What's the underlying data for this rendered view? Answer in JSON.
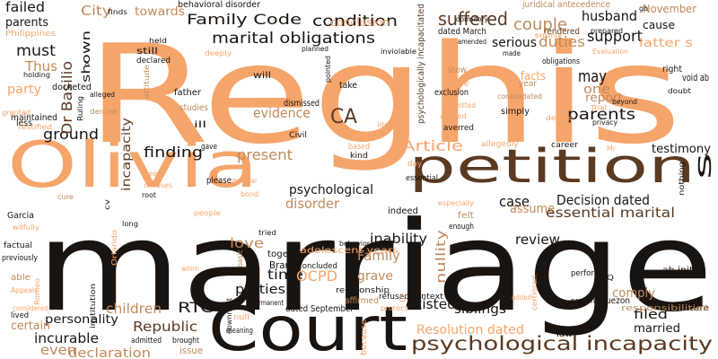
{
  "palette": {
    "background": "#ffffff",
    "dark": "#1a1410",
    "brown": "#5b3a22",
    "tan": "#c08a5a",
    "peach": "#f5a56a",
    "light": "#f7c9a0"
  },
  "words": [
    {
      "text": "Reghis",
      "color": "#f5a56a"
    },
    {
      "text": "marriage",
      "color": "#1a1410"
    },
    {
      "text": "petition",
      "color": "#5b3a22"
    },
    {
      "text": "Olivia",
      "color": "#f5a56a"
    },
    {
      "text": "Court",
      "color": "#1a1410"
    },
    {
      "text": "psychological incapacity",
      "color": "#5b3a22"
    },
    {
      "text": "marital obligations",
      "color": "#1a1410"
    },
    {
      "text": "Family Code",
      "color": "#1a1410"
    },
    {
      "text": "condition",
      "color": "#1a1410"
    },
    {
      "text": "suffered",
      "color": "#5b3a22"
    },
    {
      "text": "couple",
      "color": "#c08a5a"
    },
    {
      "text": "husband",
      "color": "#1a1410"
    },
    {
      "text": "support",
      "color": "#1a1410"
    },
    {
      "text": "duties",
      "color": "#c08a5a"
    },
    {
      "text": "serious",
      "color": "#1a1410"
    },
    {
      "text": "parents",
      "color": "#1a1410"
    },
    {
      "text": "may",
      "color": "#1a1410"
    },
    {
      "text": "one",
      "color": "#c08a5a"
    },
    {
      "text": "report",
      "color": "#c08a5a"
    },
    {
      "text": "must",
      "color": "#1a1410"
    },
    {
      "text": "failed",
      "color": "#1a1410"
    },
    {
      "text": "City",
      "color": "#c08a5a"
    },
    {
      "text": "towards",
      "color": "#c08a5a"
    },
    {
      "text": "parents",
      "color": "#1a1410"
    },
    {
      "text": "shown",
      "color": "#1a1410"
    },
    {
      "text": "Thus",
      "color": "#c08a5a"
    },
    {
      "text": "party",
      "color": "#f5a56a"
    },
    {
      "text": "Dr Basilio",
      "color": "#5b3a22"
    },
    {
      "text": "CA",
      "color": "#5b3a22"
    },
    {
      "text": "evidence",
      "color": "#c08a5a"
    },
    {
      "text": "ground",
      "color": "#1a1410"
    },
    {
      "text": "incapacity",
      "color": "#5b3a22"
    },
    {
      "text": "finding",
      "color": "#1a1410"
    },
    {
      "text": "present",
      "color": "#c08a5a"
    },
    {
      "text": "Article",
      "color": "#f5a56a"
    },
    {
      "text": "testimony",
      "color": "#1a1410"
    },
    {
      "text": "psychological",
      "color": "#1a1410"
    },
    {
      "text": "case",
      "color": "#1a1410"
    },
    {
      "text": "Decision dated",
      "color": "#1a1410"
    },
    {
      "text": "disorder",
      "color": "#c08a5a"
    },
    {
      "text": "assume",
      "color": "#c08a5a"
    },
    {
      "text": "essential marital",
      "color": "#5b3a22"
    },
    {
      "text": "love",
      "color": "#c08a5a"
    },
    {
      "text": "Family",
      "color": "#c08a5a"
    },
    {
      "text": "inability",
      "color": "#1a1410"
    },
    {
      "text": "review",
      "color": "#1a1410"
    },
    {
      "text": "nullity",
      "color": "#c08a5a"
    },
    {
      "text": "grave",
      "color": "#c08a5a"
    },
    {
      "text": "time",
      "color": "#1a1410"
    },
    {
      "text": "parties",
      "color": "#1a1410"
    },
    {
      "text": "OCPD",
      "color": "#f5a56a"
    },
    {
      "text": "RTC",
      "color": "#1a1410"
    },
    {
      "text": "children",
      "color": "#c08a5a"
    },
    {
      "text": "Republic",
      "color": "#5b3a22"
    },
    {
      "text": "incurable",
      "color": "#1a1410"
    },
    {
      "text": "personality",
      "color": "#1a1410"
    },
    {
      "text": "certain",
      "color": "#c08a5a"
    },
    {
      "text": "even",
      "color": "#c08a5a"
    },
    {
      "text": "declaration",
      "color": "#c08a5a"
    },
    {
      "text": "existed",
      "color": "#1a1410"
    },
    {
      "text": "siblings",
      "color": "#1a1410"
    },
    {
      "text": "Resolution dated",
      "color": "#f5a56a"
    },
    {
      "text": "filed",
      "color": "#1a1410"
    },
    {
      "text": "married",
      "color": "#1a1410"
    },
    {
      "text": "comply",
      "color": "#c08a5a"
    },
    {
      "text": "ab initio",
      "color": "#1a1410"
    },
    {
      "text": "conclusion",
      "color": "#f5a56a"
    },
    {
      "text": "November",
      "color": "#c08a5a"
    },
    {
      "text": "latter s",
      "color": "#f5a56a"
    },
    {
      "text": "cause",
      "color": "#1a1410"
    },
    {
      "text": "s",
      "color": "#1a1410"
    },
    {
      "text": "void ab",
      "color": "#1a1410"
    },
    {
      "text": "right",
      "color": "#1a1410"
    },
    {
      "text": "behavioral disorder",
      "color": "#1a1410"
    },
    {
      "text": "psychologically incapacitated",
      "color": "#5b3a22"
    },
    {
      "text": "juridical antecedence",
      "color": "#c08a5a"
    },
    {
      "text": "dated March",
      "color": "#1a1410"
    },
    {
      "text": "rendered",
      "color": "#5b3a22"
    },
    {
      "text": "facts",
      "color": "#f5a56a"
    },
    {
      "text": "show",
      "color": "#c08a5a"
    },
    {
      "text": "unable",
      "color": "#f5a56a"
    },
    {
      "text": "exclusion",
      "color": "#1a1410"
    },
    {
      "text": "simply",
      "color": "#1a1410"
    },
    {
      "text": "year",
      "color": "#c08a5a"
    },
    {
      "text": "father",
      "color": "#1a1410"
    },
    {
      "text": "studies",
      "color": "#c08a5a"
    },
    {
      "text": "ill",
      "color": "#1a1410"
    },
    {
      "text": "will",
      "color": "#1a1410"
    },
    {
      "text": "take",
      "color": "#1a1410"
    },
    {
      "text": "dismissed",
      "color": "#1a1410"
    },
    {
      "text": "Civil",
      "color": "#1a1410"
    },
    {
      "text": "docketed",
      "color": "#1a1410"
    },
    {
      "text": "maintained",
      "color": "#1a1410"
    },
    {
      "text": "less",
      "color": "#1a1410"
    },
    {
      "text": "Garcia",
      "color": "#1a1410"
    },
    {
      "text": "previously",
      "color": "#1a1410"
    },
    {
      "text": "factual",
      "color": "#1a1410"
    },
    {
      "text": "able",
      "color": "#c08a5a"
    },
    {
      "text": "lived",
      "color": "#1a1410"
    },
    {
      "text": "together",
      "color": "#1a1410"
    },
    {
      "text": "Branch",
      "color": "#1a1410"
    },
    {
      "text": "concluded",
      "color": "#1a1410"
    },
    {
      "text": "adolescent years",
      "color": "#f5a56a"
    },
    {
      "text": "dated September",
      "color": "#1a1410"
    },
    {
      "text": "permanent",
      "color": "#1a1410"
    },
    {
      "text": "affirmed",
      "color": "#c08a5a"
    },
    {
      "text": "refused",
      "color": "#1a1410"
    },
    {
      "text": "context",
      "color": "#1a1410"
    },
    {
      "text": "enough",
      "color": "#1a1410"
    },
    {
      "text": "indeed",
      "color": "#1a1410"
    },
    {
      "text": "felt",
      "color": "#c08a5a"
    },
    {
      "text": "perform",
      "color": "#1a1410"
    },
    {
      "text": "Quezon",
      "color": "#1a1410"
    },
    {
      "text": "structure",
      "color": "#1a1410"
    },
    {
      "text": "law",
      "color": "#1a1410"
    },
    {
      "text": "please",
      "color": "#1a1410"
    },
    {
      "text": "gave",
      "color": "#1a1410"
    },
    {
      "text": "essential",
      "color": "#1a1410"
    },
    {
      "text": "person",
      "color": "#f5a56a"
    },
    {
      "text": "kind",
      "color": "#1a1410"
    },
    {
      "text": "based",
      "color": "#f5a56a"
    },
    {
      "text": "allegedly",
      "color": "#f5a56a"
    },
    {
      "text": "career",
      "color": "#1a1410"
    },
    {
      "text": "day",
      "color": "#f5a56a"
    },
    {
      "text": "relationship",
      "color": "#1a1410"
    },
    {
      "text": "presented",
      "color": "#1a1410"
    },
    {
      "text": "responsibilities",
      "color": "#c08a5a"
    },
    {
      "text": "brought",
      "color": "#1a1410"
    },
    {
      "text": "admitted",
      "color": "#1a1410"
    },
    {
      "text": "meaning",
      "color": "#1a1410"
    },
    {
      "text": "issue",
      "color": "#c08a5a"
    },
    {
      "text": "null",
      "color": "#f5a56a"
    },
    {
      "text": "because",
      "color": "#f5a56a"
    },
    {
      "text": "Philippines",
      "color": "#f5a56a"
    },
    {
      "text": "held",
      "color": "#1a1410"
    },
    {
      "text": "still",
      "color": "#1a1410"
    },
    {
      "text": "declared",
      "color": "#1a1410"
    },
    {
      "text": "planned",
      "color": "#1a1410"
    },
    {
      "text": "inviolable",
      "color": "#1a1410"
    },
    {
      "text": "dormitory",
      "color": "#1a1410"
    },
    {
      "text": "amended",
      "color": "#1a1410"
    },
    {
      "text": "made",
      "color": "#1a1410"
    },
    {
      "text": "expense",
      "color": "#f5a56a"
    },
    {
      "text": "obligations",
      "color": "#1a1410"
    },
    {
      "text": "prepared",
      "color": "#1a1410"
    },
    {
      "text": "go",
      "color": "#1a1410"
    },
    {
      "text": "holding",
      "color": "#1a1410"
    },
    {
      "text": "alleged",
      "color": "#1a1410"
    },
    {
      "text": "pointed",
      "color": "#1a1410"
    },
    {
      "text": "attitude",
      "color": "#c08a5a"
    },
    {
      "text": "Ruling",
      "color": "#1a1410"
    },
    {
      "text": "denied",
      "color": "#c08a5a"
    },
    {
      "text": "granted",
      "color": "#f5a56a"
    },
    {
      "text": "State",
      "color": "#f5a56a"
    },
    {
      "text": "submitted",
      "color": "#f5a56a"
    },
    {
      "text": "agreed",
      "color": "#f5a56a"
    },
    {
      "text": "desire",
      "color": "#f5a56a"
    },
    {
      "text": "privacy",
      "color": "#1a1410"
    },
    {
      "text": "averred",
      "color": "#1a1410"
    },
    {
      "text": "consolidated",
      "color": "#c08a5a"
    },
    {
      "text": "beyond",
      "color": "#1a1410"
    },
    {
      "text": "doubt",
      "color": "#1a1410"
    },
    {
      "text": "Trial",
      "color": "#f5a56a"
    },
    {
      "text": "Evaluation",
      "color": "#f5a56a"
    },
    {
      "text": "finds",
      "color": "#1a1410"
    },
    {
      "text": "testified",
      "color": "#f5a56a"
    },
    {
      "text": "x",
      "color": "#1a1410"
    },
    {
      "text": "cure",
      "color": "#c08a5a"
    },
    {
      "text": "deeply",
      "color": "#f5a56a"
    },
    {
      "text": "especially",
      "color": "#f5a56a"
    },
    {
      "text": "chooses",
      "color": "#f5a56a"
    },
    {
      "text": "mean",
      "color": "#f5a56a"
    },
    {
      "text": "root",
      "color": "#1a1410"
    },
    {
      "text": "tried",
      "color": "#1a1410"
    },
    {
      "text": "behavior",
      "color": "#1a1410"
    },
    {
      "text": "basic",
      "color": "#c08a5a"
    },
    {
      "text": "downright",
      "color": "#1a1410"
    },
    {
      "text": "institution",
      "color": "#1a1410"
    },
    {
      "text": "medical",
      "color": "#f5a56a"
    },
    {
      "text": "bond",
      "color": "#f5a56a"
    },
    {
      "text": "people",
      "color": "#f5a56a"
    },
    {
      "text": "long",
      "color": "#1a1410"
    },
    {
      "text": "Appeals",
      "color": "#f5a56a"
    },
    {
      "text": "considered",
      "color": "#f5a56a"
    },
    {
      "text": "illness",
      "color": "#f5a56a"
    },
    {
      "text": "Mr",
      "color": "#f5a56a"
    },
    {
      "text": "cv",
      "color": "#1a1410"
    },
    {
      "text": "Romeo",
      "color": "#f5a56a"
    },
    {
      "text": "G",
      "color": "#f5a56a"
    },
    {
      "text": "Q",
      "color": "#1a1410"
    },
    {
      "text": "protect",
      "color": "#f5a56a"
    },
    {
      "text": "added",
      "color": "#f5a56a"
    },
    {
      "text": "certiorari",
      "color": "#f5a56a"
    },
    {
      "text": "nothing",
      "color": "#1a1410"
    },
    {
      "text": "whim",
      "color": "#f5a56a"
    },
    {
      "text": "Orlando",
      "color": "#f5a56a"
    },
    {
      "text": "wilfully",
      "color": "#f5a56a"
    }
  ]
}
